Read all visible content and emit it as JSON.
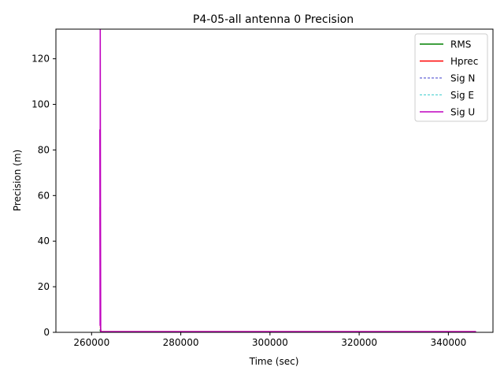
{
  "chart_data": {
    "type": "line",
    "title": "P4-05-all antenna 0 Precision",
    "xlabel": "Time (sec)",
    "ylabel": "Precision (m)",
    "xlim": [
      252000,
      350000
    ],
    "ylim": [
      0,
      133
    ],
    "xticks": [
      260000,
      280000,
      300000,
      320000,
      340000
    ],
    "xtick_labels": [
      "260000",
      "280000",
      "300000",
      "320000",
      "340000"
    ],
    "yticks": [
      0,
      20,
      40,
      60,
      80,
      100,
      120
    ],
    "ytick_labels": [
      "0",
      "20",
      "40",
      "60",
      "80",
      "100",
      "120"
    ],
    "grid": false,
    "legend_position": "top-right",
    "series": [
      {
        "name": "RMS",
        "color": "#008000",
        "style": "solid",
        "x": [
          261900,
          262000,
          262100,
          346200
        ],
        "y": [
          1.2,
          0.4,
          0.2,
          0.2
        ]
      },
      {
        "name": "Hprec",
        "color": "#ff0000",
        "style": "solid",
        "x": [
          261900,
          261950,
          262000,
          262100,
          346200
        ],
        "y": [
          55,
          20,
          2,
          0.3,
          0.3
        ]
      },
      {
        "name": "Sig N",
        "color": "#0000bf",
        "style": "dashed",
        "x": [
          261900,
          261950,
          262000,
          262100,
          346200
        ],
        "y": [
          40,
          15,
          1.5,
          0.2,
          0.2
        ]
      },
      {
        "name": "Sig E",
        "color": "#00bfbf",
        "style": "dashed",
        "x": [
          261900,
          261950,
          262000,
          262100,
          346200
        ],
        "y": [
          38,
          14,
          1.5,
          0.2,
          0.2
        ]
      },
      {
        "name": "Sig U",
        "color": "#bf00bf",
        "style": "solid",
        "x": [
          261850,
          261900,
          261950,
          261990,
          262050,
          262150,
          346200
        ],
        "y": [
          89,
          3,
          140,
          60,
          0.4,
          0.3,
          0.3
        ]
      }
    ]
  }
}
